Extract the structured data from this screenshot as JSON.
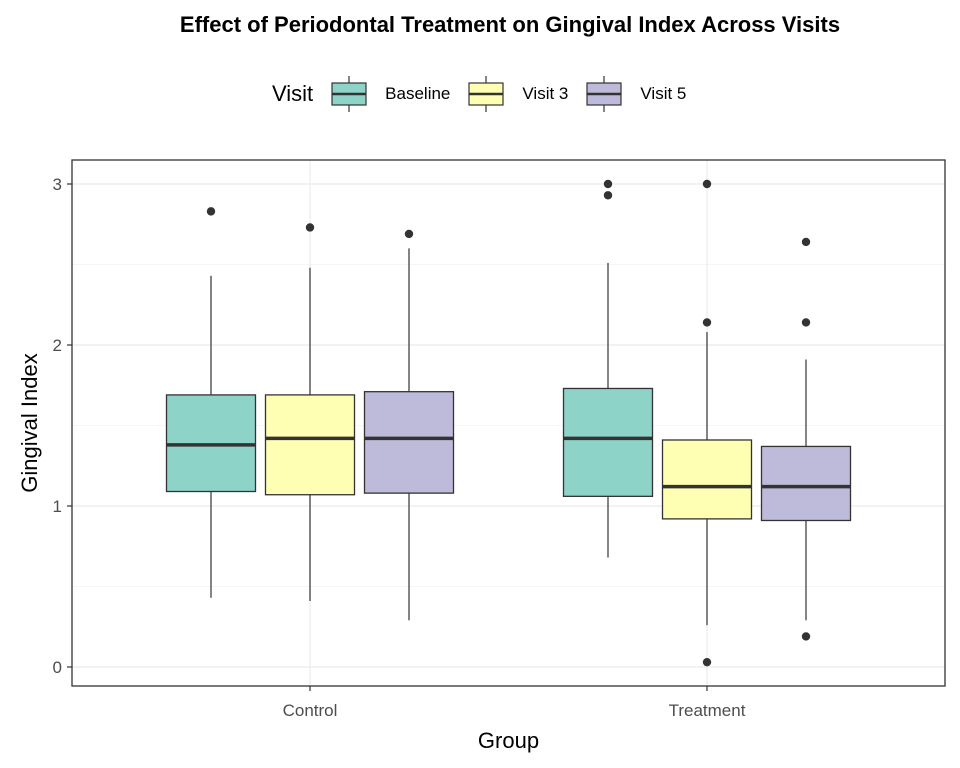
{
  "chart_data": {
    "type": "box",
    "title": "Effect of Periodontal Treatment on Gingival Index Across Visits",
    "xlabel": "Group",
    "ylabel": "Gingival Index",
    "ylim": [
      -0.1,
      3.15
    ],
    "yticks": [
      "0",
      "1",
      "2",
      "3"
    ],
    "grid": true,
    "legend": {
      "title": "Visit",
      "position": "top"
    },
    "categories": [
      "Control",
      "Treatment"
    ],
    "series": [
      {
        "name": "Baseline",
        "color": "#8DD3C7",
        "boxes": [
          {
            "whisker_low": 0.43,
            "q1": 1.09,
            "median": 1.38,
            "q3": 1.69,
            "whisker_high": 2.43,
            "outliers": [
              2.83
            ]
          },
          {
            "whisker_low": 0.68,
            "q1": 1.06,
            "median": 1.42,
            "q3": 1.73,
            "whisker_high": 2.51,
            "outliers": [
              2.93,
              3.0
            ]
          }
        ]
      },
      {
        "name": "Visit 3",
        "color": "#FFFFB3",
        "boxes": [
          {
            "whisker_low": 0.41,
            "q1": 1.07,
            "median": 1.42,
            "q3": 1.69,
            "whisker_high": 2.48,
            "outliers": [
              2.73
            ]
          },
          {
            "whisker_low": 0.26,
            "q1": 0.92,
            "median": 1.12,
            "q3": 1.41,
            "whisker_high": 2.08,
            "outliers": [
              2.14,
              3.0,
              0.03
            ]
          }
        ]
      },
      {
        "name": "Visit 5",
        "color": "#BEBADA",
        "boxes": [
          {
            "whisker_low": 0.29,
            "q1": 1.08,
            "median": 1.42,
            "q3": 1.71,
            "whisker_high": 2.6,
            "outliers": [
              2.69
            ]
          },
          {
            "whisker_low": 0.29,
            "q1": 0.91,
            "median": 1.12,
            "q3": 1.37,
            "whisker_high": 1.91,
            "outliers": [
              2.14,
              2.64,
              0.19
            ]
          }
        ]
      }
    ]
  }
}
